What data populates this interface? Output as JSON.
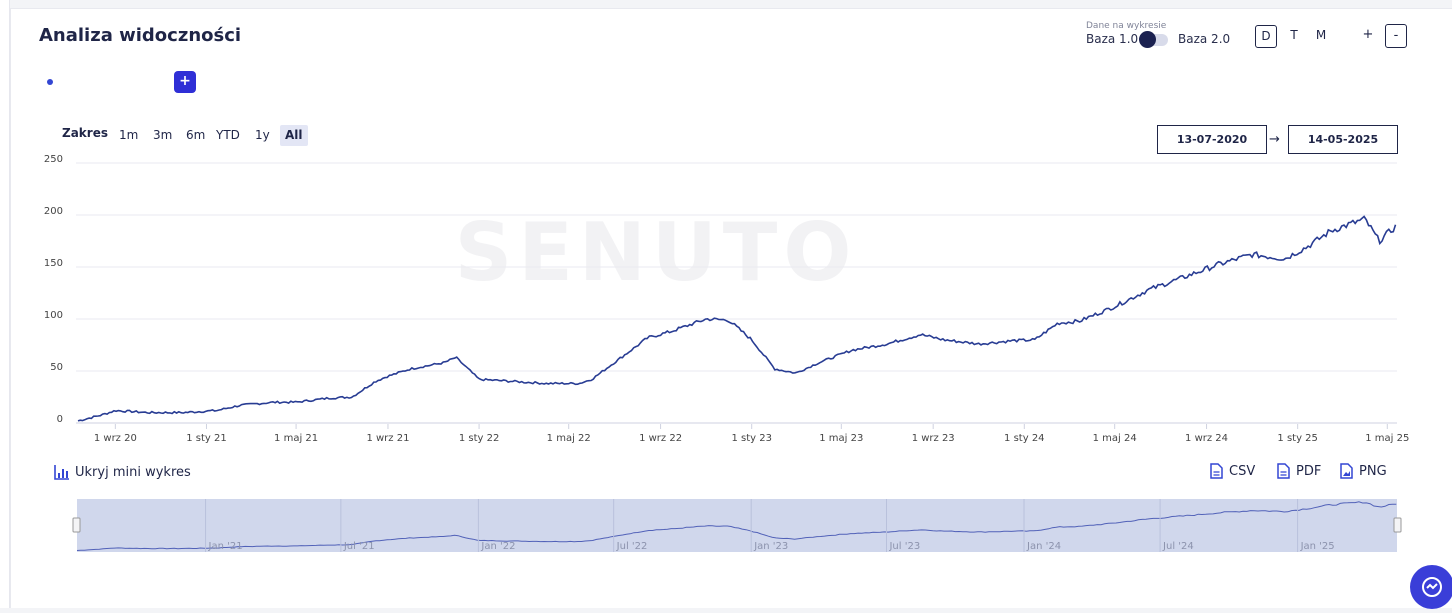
{
  "page": {
    "title": "Analiza widoczności"
  },
  "toolbar": {
    "data_label": "Dane na wykresie",
    "baza1": "Baza 1.0",
    "baza2": "Baza 2.0",
    "periods": [
      "D",
      "T",
      "M"
    ],
    "zoom_in": "+",
    "zoom_out": "-"
  },
  "add_button": "+",
  "range": {
    "label": "Zakres",
    "options": [
      "1m",
      "3m",
      "6m",
      "YTD",
      "1y",
      "All"
    ],
    "selected": "All",
    "start": "13-07-2020",
    "arrow": "→",
    "end": "14-05-2025"
  },
  "mini": {
    "toggle_label": "Ukryj mini wykres",
    "ticks": [
      "Jan '21",
      "Jul '21",
      "Jan '22",
      "Jul '22",
      "Jan '23",
      "Jul '23",
      "Jan '24",
      "Jul '24",
      "Jan '25"
    ]
  },
  "export": {
    "csv": "CSV",
    "pdf": "PDF",
    "png": "PNG"
  },
  "colors": {
    "line": "#283c93",
    "accent": "#2f2fd6",
    "navigator": "#d0d7ec"
  },
  "chart_data": {
    "type": "line",
    "title": "",
    "xlabel": "",
    "ylabel": "",
    "ylim": [
      0,
      250
    ],
    "yticks": [
      0,
      50,
      100,
      150,
      200,
      250
    ],
    "xticks": [
      "1 wrz 20",
      "1 sty 21",
      "1 maj 21",
      "1 wrz 21",
      "1 sty 22",
      "1 maj 22",
      "1 wrz 22",
      "1 sty 23",
      "1 maj 23",
      "1 wrz 23",
      "1 sty 24",
      "1 maj 24",
      "1 wrz 24",
      "1 sty 25",
      "1 maj 25"
    ],
    "grid": true,
    "watermark": "SENUTO",
    "x": [
      "2020-07-13",
      "2020-08-15",
      "2020-09-01",
      "2020-10-15",
      "2020-12-01",
      "2021-01-15",
      "2021-02-15",
      "2021-04-01",
      "2021-05-01",
      "2021-06-15",
      "2021-07-15",
      "2021-08-15",
      "2021-09-01",
      "2021-10-01",
      "2021-11-15",
      "2021-12-01",
      "2022-01-01",
      "2022-02-15",
      "2022-04-01",
      "2022-05-15",
      "2022-06-01",
      "2022-07-01",
      "2022-08-15",
      "2022-09-15",
      "2022-11-01",
      "2022-12-01",
      "2023-01-01",
      "2023-02-01",
      "2023-03-01",
      "2023-04-01",
      "2023-05-15",
      "2023-07-01",
      "2023-08-15",
      "2023-09-15",
      "2023-11-01",
      "2023-12-15",
      "2024-01-15",
      "2024-02-15",
      "2024-03-15",
      "2024-05-01",
      "2024-06-15",
      "2024-08-01",
      "2024-09-15",
      "2024-11-01",
      "2024-12-15",
      "2025-01-15",
      "2025-02-15",
      "2025-03-15",
      "2025-04-01",
      "2025-04-20",
      "2025-05-14"
    ],
    "series": [
      {
        "values": [
          2,
          8,
          12,
          10,
          10,
          12,
          17,
          20,
          20,
          24,
          25,
          40,
          45,
          52,
          58,
          63,
          42,
          40,
          38,
          38,
          42,
          58,
          82,
          88,
          100,
          99,
          80,
          52,
          48,
          58,
          70,
          76,
          85,
          80,
          76,
          79,
          80,
          96,
          98,
          112,
          128,
          140,
          152,
          162,
          158,
          170,
          185,
          192,
          196,
          175,
          190
        ]
      }
    ]
  }
}
